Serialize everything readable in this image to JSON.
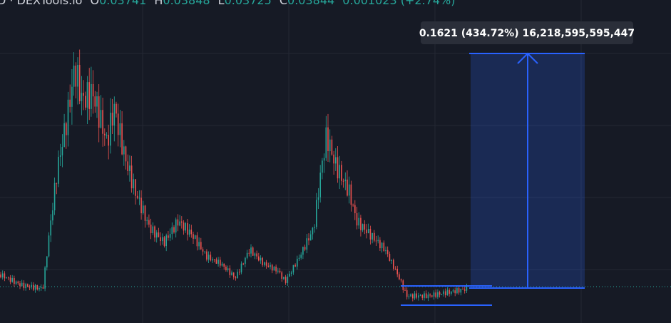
{
  "header": {
    "symbol": "D · DEXTools.io",
    "ohlc": [
      {
        "label": "O",
        "value": "0.03741"
      },
      {
        "label": "H",
        "value": "0.03848"
      },
      {
        "label": "L",
        "value": "0.03725"
      },
      {
        "label": "C",
        "value": "0.03844"
      }
    ],
    "change": "0.001023 (+2.74%)"
  },
  "measure": {
    "label": "0.1621 (434.72%) 16,218,595,595,447"
  }
}
